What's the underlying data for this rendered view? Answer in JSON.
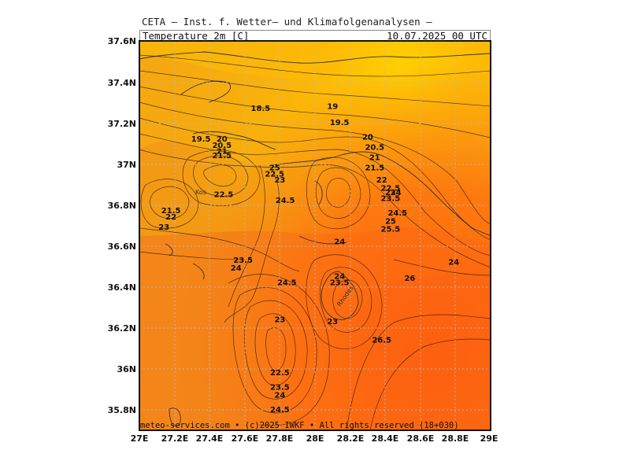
{
  "header": {
    "institute": "CETA — Inst. f. Wetter— und Klimafolgenanalysen —",
    "parameter": "Temperature 2m [C]",
    "datetime": "10.07.2025 00 UTC"
  },
  "footer": {
    "credit": "meteo-services.com • (c)2025 IWKF • All rights reserved (18+030)"
  },
  "axes": {
    "lat_labels": [
      "37.6N",
      "37.4N",
      "37.2N",
      "37N",
      "36.8N",
      "36.6N",
      "36.4N",
      "36.2N",
      "36N",
      "35.8N"
    ],
    "lon_labels": [
      "27E",
      "27.2E",
      "27.4E",
      "27.6E",
      "27.8E",
      "28E",
      "28.2E",
      "28.4E",
      "28.6E",
      "28.8E",
      "29E"
    ]
  },
  "places": {
    "kos": "Kos",
    "rhodes": "Rhodes"
  },
  "colors": {
    "warm_low": "#f39c12",
    "warm_mid": "#f57c18",
    "warm_high": "#ff5a0e",
    "cool": "#f7b20a",
    "coolest": "#ffd000"
  },
  "contour_labels": [
    {
      "text": "18.5",
      "lon": 27.69,
      "lat": 37.27
    },
    {
      "text": "19",
      "lon": 28.1,
      "lat": 37.28
    },
    {
      "text": "19.5",
      "lon": 28.14,
      "lat": 37.2
    },
    {
      "text": "19.5",
      "lon": 27.35,
      "lat": 37.12
    },
    {
      "text": "20",
      "lon": 27.47,
      "lat": 37.12
    },
    {
      "text": "20.5",
      "lon": 27.47,
      "lat": 37.09
    },
    {
      "text": "21",
      "lon": 27.47,
      "lat": 37.06
    },
    {
      "text": "21.5",
      "lon": 27.47,
      "lat": 37.04
    },
    {
      "text": "20",
      "lon": 28.3,
      "lat": 37.13
    },
    {
      "text": "20.5",
      "lon": 28.34,
      "lat": 37.08
    },
    {
      "text": "21",
      "lon": 28.34,
      "lat": 37.03
    },
    {
      "text": "21.5",
      "lon": 28.34,
      "lat": 36.98
    },
    {
      "text": "22",
      "lon": 28.38,
      "lat": 36.92
    },
    {
      "text": "22.5",
      "lon": 28.43,
      "lat": 36.88
    },
    {
      "text": "23",
      "lon": 28.43,
      "lat": 36.86
    },
    {
      "text": "23.5",
      "lon": 28.43,
      "lat": 36.83
    },
    {
      "text": "24",
      "lon": 28.46,
      "lat": 36.86
    },
    {
      "text": "24.5",
      "lon": 28.47,
      "lat": 36.76
    },
    {
      "text": "25",
      "lon": 28.43,
      "lat": 36.72
    },
    {
      "text": "25.5",
      "lon": 28.43,
      "lat": 36.68
    },
    {
      "text": "25",
      "lon": 27.77,
      "lat": 36.98
    },
    {
      "text": "22.5",
      "lon": 27.77,
      "lat": 36.95
    },
    {
      "text": "23",
      "lon": 27.8,
      "lat": 36.92
    },
    {
      "text": "22.5",
      "lon": 27.48,
      "lat": 36.85
    },
    {
      "text": "21.5",
      "lon": 27.18,
      "lat": 36.77
    },
    {
      "text": "22",
      "lon": 27.18,
      "lat": 36.74
    },
    {
      "text": "23",
      "lon": 27.14,
      "lat": 36.69
    },
    {
      "text": "24.5",
      "lon": 27.83,
      "lat": 36.82
    },
    {
      "text": "24",
      "lon": 28.14,
      "lat": 36.62
    },
    {
      "text": "23.5",
      "lon": 27.59,
      "lat": 36.53
    },
    {
      "text": "24",
      "lon": 27.55,
      "lat": 36.49
    },
    {
      "text": "24.5",
      "lon": 27.84,
      "lat": 36.42
    },
    {
      "text": "24",
      "lon": 28.14,
      "lat": 36.45
    },
    {
      "text": "23.5",
      "lon": 28.14,
      "lat": 36.42
    },
    {
      "text": "26",
      "lon": 28.54,
      "lat": 36.44
    },
    {
      "text": "24",
      "lon": 28.79,
      "lat": 36.52
    },
    {
      "text": "23",
      "lon": 27.8,
      "lat": 36.24
    },
    {
      "text": "23",
      "lon": 28.1,
      "lat": 36.23
    },
    {
      "text": "26.5",
      "lon": 28.38,
      "lat": 36.14
    },
    {
      "text": "22.5",
      "lon": 27.8,
      "lat": 35.98
    },
    {
      "text": "23.5",
      "lon": 27.8,
      "lat": 35.91
    },
    {
      "text": "24",
      "lon": 27.8,
      "lat": 35.87
    },
    {
      "text": "24.5",
      "lon": 27.8,
      "lat": 35.8
    }
  ]
}
